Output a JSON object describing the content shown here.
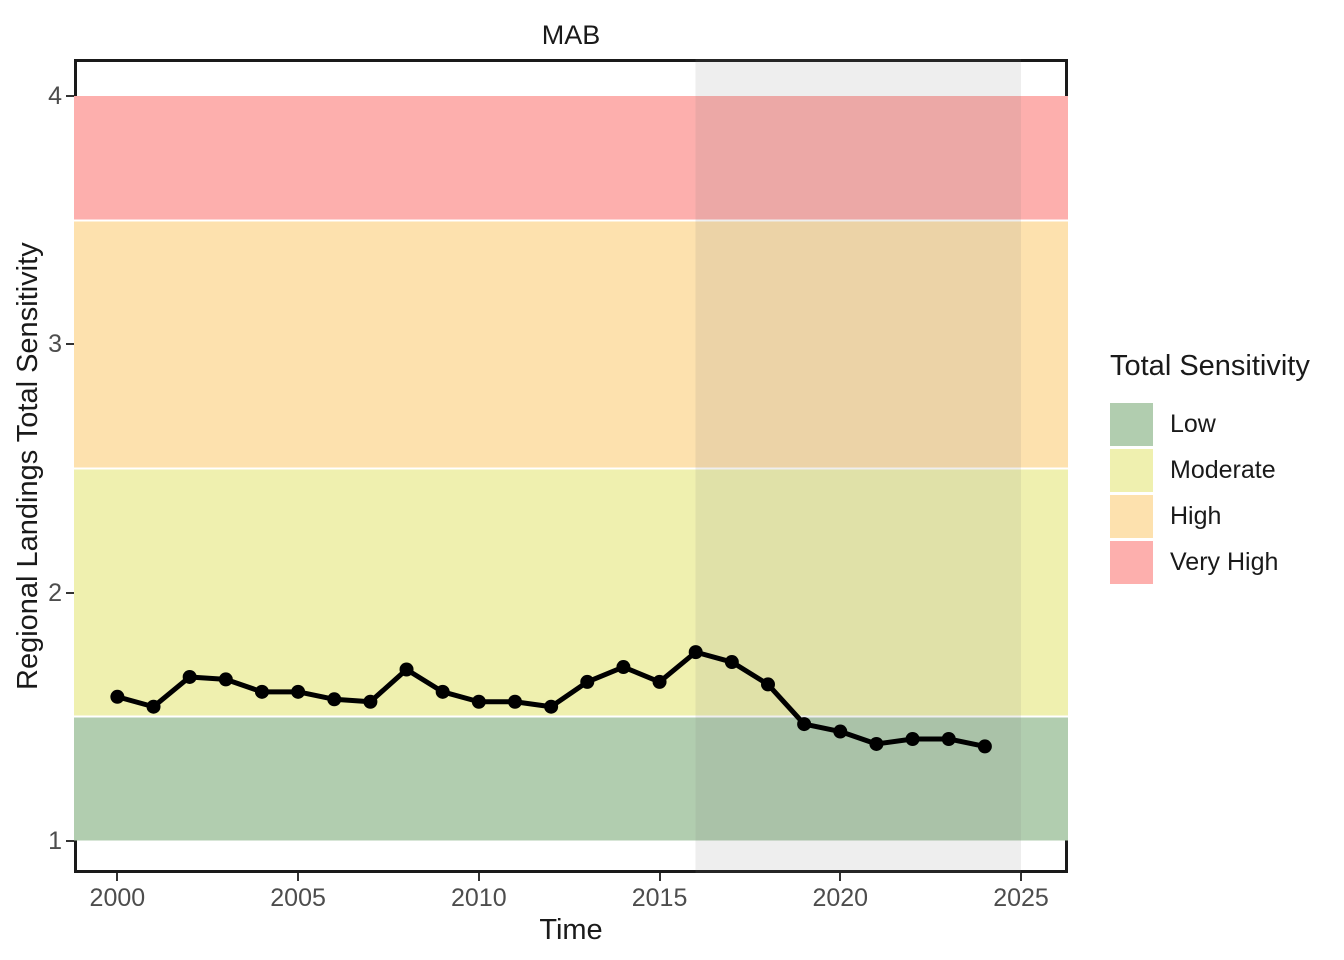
{
  "title": "MAB",
  "chart_data": {
    "type": "line",
    "title": "MAB",
    "xlabel": "Time",
    "ylabel": "Regional Landings Total Sensitivity",
    "x": [
      2000,
      2001,
      2002,
      2003,
      2004,
      2005,
      2006,
      2007,
      2008,
      2009,
      2010,
      2011,
      2012,
      2013,
      2014,
      2015,
      2016,
      2017,
      2018,
      2019,
      2020,
      2021,
      2022,
      2023,
      2024
    ],
    "series": [
      {
        "name": "Regional Landings Total Sensitivity",
        "values": [
          1.58,
          1.54,
          1.66,
          1.65,
          1.6,
          1.6,
          1.57,
          1.56,
          1.69,
          1.6,
          1.56,
          1.56,
          1.54,
          1.64,
          1.7,
          1.64,
          1.76,
          1.72,
          1.63,
          1.47,
          1.44,
          1.39,
          1.41,
          1.41,
          1.38
        ]
      }
    ],
    "xlim": [
      1998.8,
      2026.3
    ],
    "ylim": [
      0.87,
      4.15
    ],
    "x_ticks": [
      2000,
      2005,
      2010,
      2015,
      2020,
      2025
    ],
    "y_ticks": [
      1,
      2,
      3,
      4
    ],
    "grid": false,
    "legend_position": "right",
    "bands": [
      {
        "label": "Low",
        "from": 1.0,
        "to": 1.5,
        "color": "#B1CDAF"
      },
      {
        "label": "Moderate",
        "from": 1.5,
        "to": 2.5,
        "color": "#EFF0AF"
      },
      {
        "label": "High",
        "from": 2.5,
        "to": 3.5,
        "color": "#FDE1AE"
      },
      {
        "label": "Very High",
        "from": 3.5,
        "to": 4.0,
        "color": "#FDAFAD"
      }
    ],
    "band_separator_color": "#FFFFFF",
    "highlight_region": {
      "x_from": 2016,
      "x_to": 2025,
      "color": "rgba(127,127,127,0.13)"
    },
    "line": {
      "color": "#000000",
      "width": 5,
      "point_radius": 7
    }
  },
  "legend": {
    "title": "Total Sensitivity",
    "entries": [
      {
        "label": "Low",
        "color": "#B1CDAF"
      },
      {
        "label": "Moderate",
        "color": "#EFF0AF"
      },
      {
        "label": "High",
        "color": "#FDE1AE"
      },
      {
        "label": "Very High",
        "color": "#FDAFAD"
      }
    ]
  },
  "colors": {
    "tick_label": "#4D4D4D",
    "axis_title": "#1A1A1A",
    "panel_border": "#1A1A1A",
    "background": "#FFFFFF"
  }
}
